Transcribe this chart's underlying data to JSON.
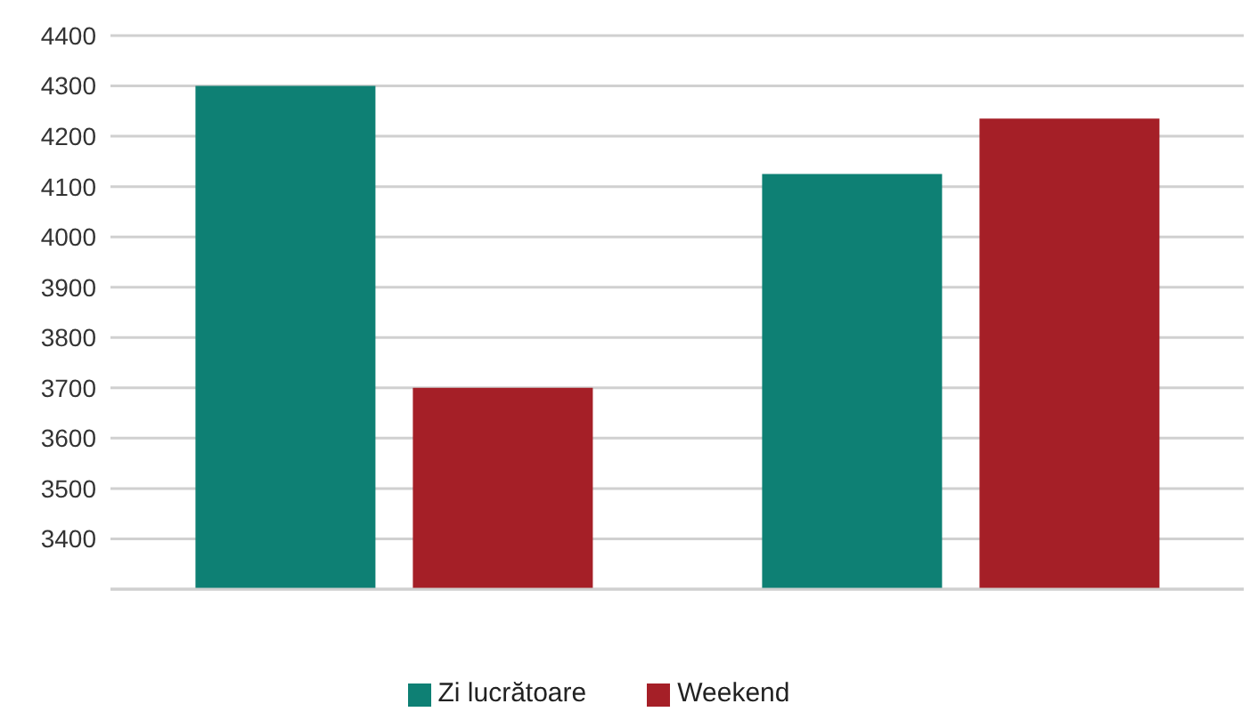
{
  "chart_data": {
    "type": "bar",
    "categories": [
      null,
      null
    ],
    "series": [
      {
        "name": "Zi lucrătoare",
        "color": "#0e8074",
        "values": [
          4300,
          4125
        ]
      },
      {
        "name": "Weekend",
        "color": "#a51f27",
        "values": [
          3700,
          4235
        ]
      }
    ],
    "ylim": [
      3300,
      4400
    ],
    "yticks": [
      {
        "value": 3300,
        "label": null
      },
      3400,
      3500,
      3600,
      3700,
      3800,
      3900,
      4000,
      4100,
      4200,
      4300,
      4400
    ],
    "grid": "y",
    "legend": "bottom"
  }
}
